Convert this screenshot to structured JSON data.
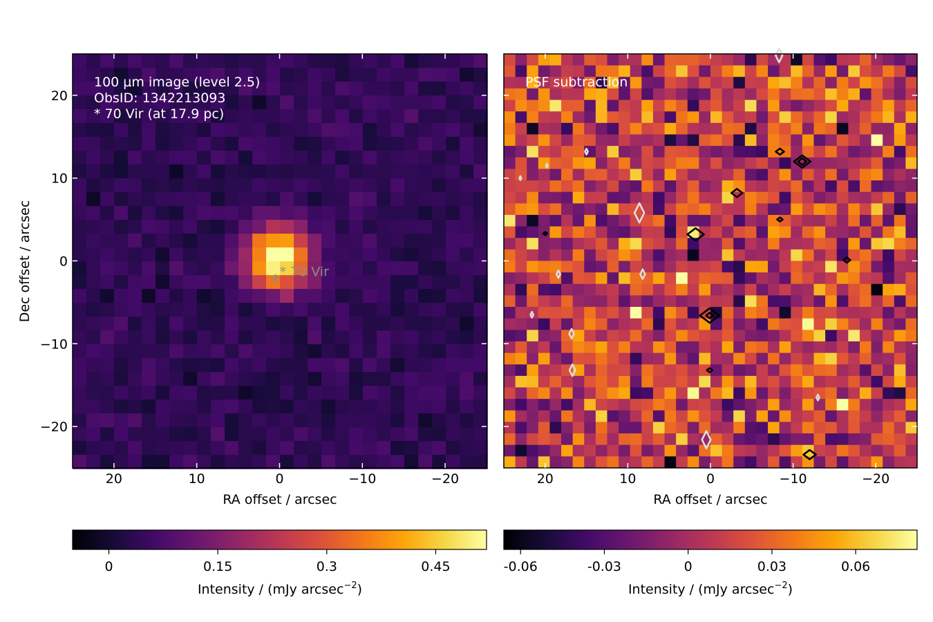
{
  "colors": {
    "background": "#ffffff",
    "frame": "#000000",
    "ticks_inside": "#ffffff",
    "annotation_text": "#ffffff",
    "star_label": "#8c8c8c"
  },
  "chart_data": [
    {
      "type": "heatmap",
      "colormap": "inferno",
      "extent": {
        "ra": [
          25,
          -25
        ],
        "dec": [
          -25,
          25
        ]
      },
      "pixel_size_arcsec": 1.67,
      "xlabel": "RA offset / arcsec",
      "ylabel": "Dec offset / arcsec",
      "xticks": [
        20,
        10,
        0,
        -10,
        -20
      ],
      "xtick_labels": [
        "20",
        "10",
        "0",
        "−10",
        "−20"
      ],
      "yticks": [
        20,
        10,
        0,
        -10,
        -20
      ],
      "ytick_labels": [
        "20",
        "10",
        "0",
        "−10",
        "−20"
      ],
      "annotation": [
        "100 µm image (level 2.5)",
        "ObsID: 1342213093",
        "* 70 Vir (at 17.9 pc)"
      ],
      "marker": {
        "label": "* 70 Vir",
        "ra": 0.5,
        "dec": -2.1
      },
      "source": {
        "ra": 0.2,
        "dec": 0.3,
        "peak": 0.52,
        "sigma_arcsec": 2.6
      },
      "background": {
        "level": 0.04,
        "noise": 0.02
      },
      "colorbar": {
        "vmin": -0.05,
        "vmax": 0.52,
        "ticks": [
          0,
          0.15,
          0.3,
          0.45
        ],
        "tick_labels": [
          "0",
          "0.15",
          "0.3",
          "0.45"
        ],
        "label": "Intensity / (mJy arcsec",
        "label_sup": "−2",
        "label_end": ")"
      }
    },
    {
      "type": "heatmap",
      "colormap": "inferno",
      "extent": {
        "ra": [
          25,
          -25
        ],
        "dec": [
          -25,
          25
        ]
      },
      "pixel_size_arcsec": 1.67,
      "xlabel": "RA offset / arcsec",
      "xticks": [
        20,
        10,
        0,
        -10,
        -20
      ],
      "xtick_labels": [
        "20",
        "10",
        "0",
        "−10",
        "−20"
      ],
      "yticks": [
        20,
        10,
        0,
        -10,
        -20
      ],
      "annotation": [
        "PSF subtraction"
      ],
      "contours": {
        "positive": [
          [
            -11.1,
            12.0
          ],
          [
            -8.4,
            13.2
          ],
          [
            -3.2,
            8.2
          ],
          [
            1.8,
            3.2
          ],
          [
            -8.4,
            5.0
          ],
          [
            -16.5,
            0.1
          ],
          [
            0.1,
            -6.6
          ],
          [
            0.1,
            -13.2
          ],
          [
            20.0,
            3.3
          ],
          [
            -12.0,
            -23.4
          ]
        ],
        "negative": [
          [
            -8.3,
            24.8
          ],
          [
            8.6,
            5.8
          ],
          [
            18.4,
            -1.6
          ],
          [
            8.2,
            -1.6
          ],
          [
            16.8,
            -8.8
          ],
          [
            16.7,
            -13.2
          ],
          [
            21.6,
            -6.5
          ],
          [
            0.5,
            -21.6
          ],
          [
            15.0,
            13.2
          ],
          [
            19.8,
            11.5
          ],
          [
            23.0,
            10.0
          ],
          [
            -13.0,
            -16.5
          ]
        ]
      },
      "colorbar": {
        "vmin": -0.066,
        "vmax": 0.082,
        "ticks": [
          -0.06,
          -0.03,
          0,
          0.03,
          0.06
        ],
        "tick_labels": [
          "-0.06",
          "-0.03",
          "0",
          "0.03",
          "0.06"
        ],
        "label": "Intensity / (mJy arcsec",
        "label_sup": "−2",
        "label_end": ")"
      }
    }
  ]
}
